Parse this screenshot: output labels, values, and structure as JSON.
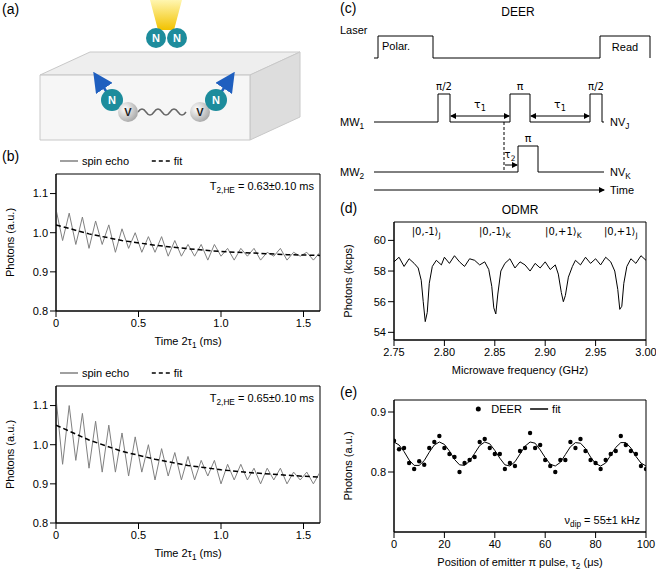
{
  "figure_a": {
    "panel": "(a)",
    "molecule": [
      "N",
      "N"
    ],
    "centers": [
      [
        "N",
        "V"
      ],
      [
        "V",
        "N"
      ]
    ]
  },
  "figure_c": {
    "panel": "(c)",
    "title": "DEER",
    "time_label": "Time",
    "laser": {
      "label": "Laser",
      "pulses": [
        "Polar.",
        "Read"
      ]
    },
    "mw1": {
      "label": [
        "MW",
        {
          "sub": "1"
        }
      ],
      "pulses": [
        "π/2",
        "π",
        "π/2"
      ],
      "delay": [
        "τ",
        {
          "sub": "1"
        }
      ],
      "target": [
        "NV",
        {
          "sub": "J"
        }
      ]
    },
    "mw2": {
      "label": [
        "MW",
        {
          "sub": "2"
        }
      ],
      "pulses": [
        "π"
      ],
      "delay": [
        "τ",
        {
          "sub": "2"
        }
      ],
      "target": [
        "NV",
        {
          "sub": "K"
        }
      ]
    }
  },
  "chart_data": [
    {
      "panel": "(b)",
      "type": "line",
      "x_label": [
        "Time 2τ",
        {
          "sub": "1"
        },
        " (ms)"
      ],
      "y_label": "Photons (a.u.)",
      "xlim": [
        0,
        1.6
      ],
      "ylim": [
        0.8,
        1.15
      ],
      "xticks": [
        0,
        0.5,
        {
          "value": 1,
          "label": "1.0"
        },
        1.5
      ],
      "yticks": [
        0.8,
        0.9,
        {
          "value": 1,
          "label": "1.0"
        },
        1.1
      ],
      "legend": "top",
      "annotations": [
        {
          "text": [
            "T",
            {
              "sub": "2,HE"
            },
            " = 0.63±0.10 ms"
          ]
        }
      ],
      "series": [
        {
          "name": "spin echo",
          "type": "line",
          "color": "#808080",
          "line_style": "solid",
          "x": [
            0,
            0.04,
            0.08,
            0.12,
            0.16,
            0.2,
            0.24,
            0.28,
            0.32,
            0.36,
            0.4,
            0.44,
            0.48,
            0.52,
            0.56,
            0.6,
            0.64,
            0.68,
            0.72,
            0.76,
            0.8,
            0.84,
            0.88,
            0.92,
            0.96,
            1,
            1.04,
            1.08,
            1.12,
            1.16,
            1.2,
            1.24,
            1.28,
            1.32,
            1.36,
            1.4,
            1.44,
            1.48,
            1.52,
            1.56,
            1.6
          ],
          "values": [
            1.06,
            0.98,
            1.05,
            0.97,
            1.04,
            0.96,
            1.03,
            0.97,
            1.02,
            0.95,
            1.01,
            0.96,
            1.0,
            0.95,
            0.99,
            0.95,
            0.99,
            0.94,
            0.98,
            0.94,
            0.97,
            0.94,
            0.97,
            0.93,
            0.97,
            0.94,
            0.96,
            0.93,
            0.96,
            0.94,
            0.96,
            0.93,
            0.95,
            0.94,
            0.96,
            0.93,
            0.95,
            0.94,
            0.95,
            0.93,
            0.95
          ]
        },
        {
          "name": "fit",
          "type": "line",
          "color": "#000000",
          "line_style": "dashed",
          "x": [
            0,
            0.2,
            0.4,
            0.6,
            0.8,
            1,
            1.2,
            1.4,
            1.6
          ],
          "values": [
            1.02,
            0.997,
            0.98,
            0.968,
            0.959,
            0.952,
            0.948,
            0.944,
            0.942
          ]
        }
      ]
    },
    {
      "type": "line",
      "x_label": [
        "Time 2τ",
        {
          "sub": "1"
        },
        " (ms)"
      ],
      "y_label": "Photons (a.u.)",
      "xlim": [
        0,
        1.6
      ],
      "ylim": [
        0.8,
        1.15
      ],
      "xticks": [
        0,
        0.5,
        {
          "value": 1,
          "label": "1.0"
        },
        1.5
      ],
      "yticks": [
        0.8,
        0.9,
        {
          "value": 1,
          "label": "1.0"
        },
        1.1
      ],
      "legend": "top",
      "annotations": [
        {
          "text": [
            "T",
            {
              "sub": "2,HE"
            },
            " = 0.65±0.10 ms"
          ]
        }
      ],
      "series": [
        {
          "name": "spin echo",
          "type": "line",
          "color": "#808080",
          "line_style": "solid",
          "x": [
            0,
            0.04,
            0.08,
            0.12,
            0.16,
            0.2,
            0.24,
            0.28,
            0.32,
            0.36,
            0.4,
            0.44,
            0.48,
            0.52,
            0.56,
            0.6,
            0.64,
            0.68,
            0.72,
            0.76,
            0.8,
            0.84,
            0.88,
            0.92,
            0.96,
            1,
            1.04,
            1.08,
            1.12,
            1.16,
            1.2,
            1.24,
            1.28,
            1.32,
            1.36,
            1.4,
            1.44,
            1.48,
            1.52,
            1.56,
            1.6
          ],
          "values": [
            1.12,
            0.95,
            1.1,
            0.96,
            1.08,
            0.94,
            1.06,
            0.93,
            1.05,
            0.93,
            1.03,
            0.92,
            1.02,
            0.93,
            1.0,
            0.91,
            0.99,
            0.92,
            0.98,
            0.91,
            0.97,
            0.91,
            0.96,
            0.92,
            0.96,
            0.9,
            0.95,
            0.91,
            0.95,
            0.91,
            0.94,
            0.9,
            0.94,
            0.91,
            0.94,
            0.9,
            0.93,
            0.91,
            0.93,
            0.9,
            0.93
          ]
        },
        {
          "name": "fit",
          "type": "line",
          "color": "#000000",
          "line_style": "dashed",
          "x": [
            0,
            0.2,
            0.4,
            0.6,
            0.8,
            1,
            1.2,
            1.4,
            1.6
          ],
          "values": [
            1.05,
            1.012,
            0.983,
            0.963,
            0.947,
            0.936,
            0.928,
            0.922,
            0.917
          ]
        }
      ]
    },
    {
      "panel": "(d)",
      "type": "line",
      "title": "ODMR",
      "x_label": "Microwave frequency (GHz)",
      "y_label": "Photons (kcps)",
      "xlim": [
        2.75,
        3
      ],
      "ylim": [
        53.5,
        61.2
      ],
      "xticks": [
        2.75,
        {
          "value": 2.8,
          "label": "2.80"
        },
        2.85,
        {
          "value": 2.9,
          "label": "2.90"
        },
        2.95,
        {
          "value": 3,
          "label": "3.00"
        }
      ],
      "yticks": [
        54,
        56,
        58,
        60
      ],
      "annotations": [
        {
          "text": [
            "|0,-1⟩",
            {
              "sub": "J"
            }
          ],
          "x": 2.782
        },
        {
          "text": [
            "|0,-1⟩",
            {
              "sub": "K"
            }
          ],
          "x": 2.85
        },
        {
          "text": [
            "|0,+1⟩",
            {
              "sub": "K"
            }
          ],
          "x": 2.918
        },
        {
          "text": [
            "|0,+1⟩",
            {
              "sub": "J"
            }
          ],
          "x": 2.975
        }
      ],
      "series": [
        {
          "type": "line",
          "color": "#000000",
          "line_style": "solid",
          "x": [
            2.75,
            2.755,
            2.76,
            2.765,
            2.77,
            2.774,
            2.777,
            2.779,
            2.781,
            2.783,
            2.785,
            2.788,
            2.792,
            2.797,
            2.8,
            2.805,
            2.81,
            2.815,
            2.82,
            2.825,
            2.83,
            2.835,
            2.84,
            2.844,
            2.847,
            2.849,
            2.851,
            2.853,
            2.856,
            2.86,
            2.865,
            2.87,
            2.875,
            2.88,
            2.885,
            2.89,
            2.895,
            2.9,
            2.905,
            2.91,
            2.913,
            2.916,
            2.918,
            2.92,
            2.923,
            2.927,
            2.93,
            2.935,
            2.94,
            2.945,
            2.95,
            2.955,
            2.96,
            2.965,
            2.969,
            2.972,
            2.974,
            2.976,
            2.978,
            2.981,
            2.985,
            2.99,
            2.995,
            3
          ],
          "values": [
            58.6,
            58.9,
            58.3,
            58.8,
            58.5,
            58.2,
            57.4,
            56,
            54.7,
            55.3,
            57.2,
            58.3,
            58.7,
            58.4,
            58.9,
            58.5,
            59,
            58.6,
            58.3,
            58.8,
            58.7,
            58.4,
            58.6,
            58.1,
            57,
            55.6,
            55.2,
            56.5,
            58,
            58.5,
            58.8,
            58.2,
            58.6,
            58.4,
            58,
            58.5,
            58.2,
            58.6,
            58.1,
            58.4,
            57.8,
            56.6,
            56,
            56.4,
            57.6,
            58.3,
            58.7,
            58.4,
            58.9,
            58.5,
            58.8,
            58.4,
            58.9,
            58.6,
            58,
            56.8,
            55.5,
            55.7,
            57.2,
            58.3,
            58.8,
            58.5,
            59,
            58.7
          ]
        }
      ]
    },
    {
      "panel": "(e)",
      "type": "scatter",
      "x_label": [
        "Position of emitter π pulse, τ",
        {
          "sub": "2"
        },
        " (μs)"
      ],
      "y_label": "Photons (a.u.)",
      "xlim": [
        0,
        100
      ],
      "ylim": [
        0.7,
        0.92
      ],
      "xticks": [
        0,
        20,
        40,
        60,
        80,
        100
      ],
      "yticks": [
        0.8,
        0.9
      ],
      "legend": "upper center",
      "annotations": [
        {
          "text": [
            "ν",
            {
              "sub": "dip"
            },
            " = 55±1 kHz"
          ]
        }
      ],
      "series": [
        {
          "name": "DEER",
          "type": "scatter",
          "marker": "circle",
          "color": "#000000",
          "x": [
            0,
            2,
            4,
            6,
            8,
            10,
            12,
            14,
            16,
            18,
            20,
            22,
            24,
            26,
            28,
            30,
            32,
            34,
            36,
            38,
            40,
            42,
            44,
            46,
            48,
            50,
            52,
            54,
            56,
            58,
            60,
            62,
            64,
            66,
            68,
            70,
            72,
            74,
            76,
            78,
            80,
            82,
            84,
            86,
            88,
            90,
            92,
            94,
            96,
            98,
            100
          ],
          "values": [
            0.852,
            0.838,
            0.84,
            0.815,
            0.805,
            0.818,
            0.812,
            0.84,
            0.85,
            0.86,
            0.84,
            0.83,
            0.825,
            0.8,
            0.815,
            0.82,
            0.825,
            0.85,
            0.855,
            0.84,
            0.83,
            0.83,
            0.805,
            0.815,
            0.81,
            0.835,
            0.84,
            0.865,
            0.84,
            0.845,
            0.82,
            0.81,
            0.8,
            0.82,
            0.82,
            0.85,
            0.84,
            0.855,
            0.835,
            0.82,
            0.815,
            0.805,
            0.82,
            0.83,
            0.835,
            0.86,
            0.845,
            0.835,
            0.83,
            0.81,
            0.805
          ]
        },
        {
          "name": "fit",
          "type": "line",
          "color": "#000000",
          "line_style": "solid",
          "x": [
            0,
            2,
            4,
            6,
            8,
            10,
            12,
            14,
            16,
            18,
            20,
            22,
            24,
            26,
            28,
            30,
            32,
            34,
            36,
            38,
            40,
            42,
            44,
            46,
            48,
            50,
            52,
            54,
            56,
            58,
            60,
            62,
            64,
            66,
            68,
            70,
            72,
            74,
            76,
            78,
            80,
            82,
            84,
            86,
            88,
            90,
            92,
            94,
            96,
            98,
            100
          ],
          "values": [
            0.85,
            0.845,
            0.834,
            0.82,
            0.811,
            0.811,
            0.819,
            0.833,
            0.845,
            0.85,
            0.846,
            0.835,
            0.821,
            0.812,
            0.811,
            0.818,
            0.831,
            0.844,
            0.85,
            0.847,
            0.836,
            0.823,
            0.812,
            0.81,
            0.817,
            0.83,
            0.843,
            0.85,
            0.848,
            0.837,
            0.824,
            0.813,
            0.81,
            0.816,
            0.829,
            0.842,
            0.849,
            0.848,
            0.839,
            0.825,
            0.814,
            0.81,
            0.815,
            0.828,
            0.841,
            0.849,
            0.849,
            0.84,
            0.826,
            0.815,
            0.81
          ]
        }
      ]
    }
  ]
}
